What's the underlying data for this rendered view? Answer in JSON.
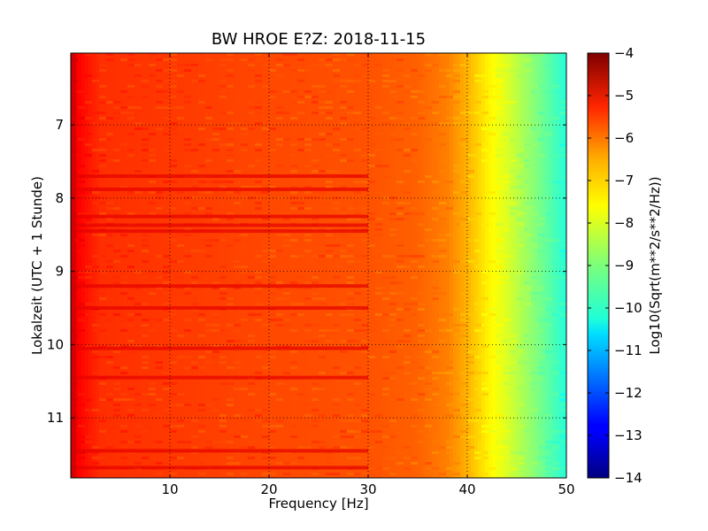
{
  "chart_data": {
    "type": "heatmap",
    "title": "BW HROE E?Z: 2018-11-15",
    "xlabel": "Frequency [Hz]",
    "ylabel": "Lokalzeit (UTC + 1 Stunde)",
    "xlim": [
      0,
      50
    ],
    "ylim": [
      11.82,
      6.02
    ],
    "y_inverted": true,
    "xticks": [
      10,
      20,
      30,
      40,
      50
    ],
    "yticks": [
      7,
      8,
      9,
      10,
      11
    ],
    "grid": "dotted",
    "colormap": "jet",
    "colorbar": {
      "label": "Log10(Sqrt(m**2/s**2/Hz))",
      "range": [
        -14,
        -4
      ],
      "ticks": [
        -4,
        -5,
        -6,
        -7,
        -8,
        -9,
        -10,
        -11,
        -12,
        -13,
        -14
      ]
    },
    "frequency_profile": {
      "freq_hz": [
        0,
        1,
        3,
        10,
        20,
        30,
        35,
        38,
        40,
        42,
        44,
        46,
        48,
        50
      ],
      "log_amplitude": [
        -5.0,
        -5.3,
        -5.7,
        -5.8,
        -5.95,
        -6.05,
        -6.2,
        -6.5,
        -7.0,
        -7.6,
        -8.1,
        -8.7,
        -9.3,
        -9.9
      ]
    },
    "stronger_bands_hour": [
      7.7,
      7.88,
      8.25,
      8.37,
      8.45,
      9.2,
      9.5,
      10.05,
      10.45,
      11.45,
      11.68
    ],
    "colors": {
      "background": "#ffffff",
      "axes": "#000000",
      "grid": "#000000"
    }
  }
}
